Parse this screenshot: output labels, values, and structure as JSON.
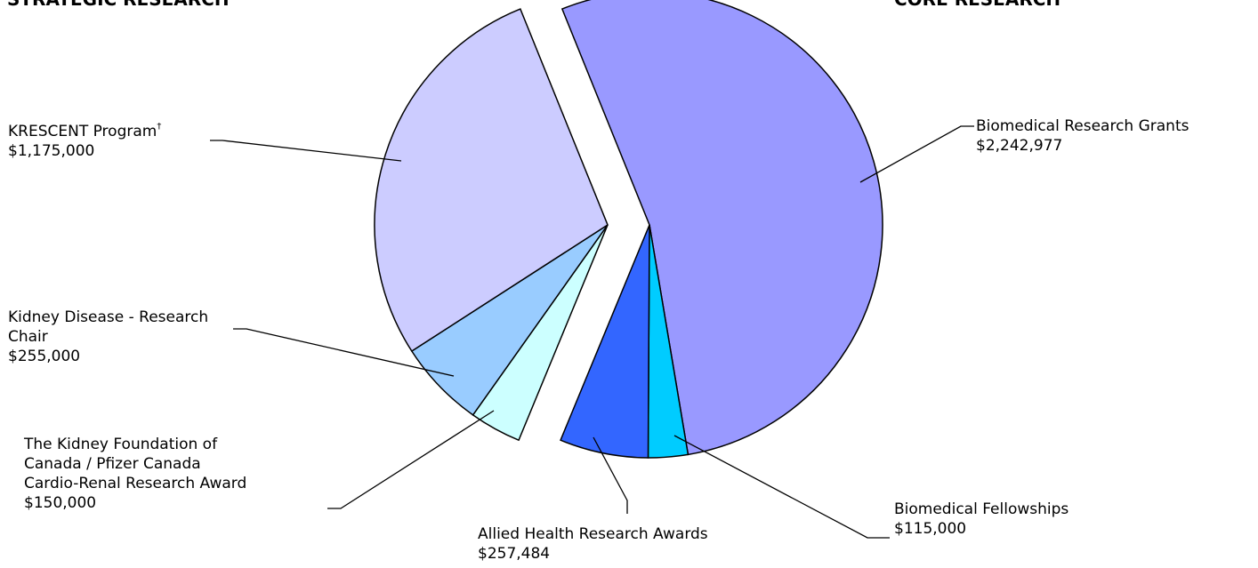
{
  "chart_data": {
    "type": "pie",
    "groups": [
      {
        "name": "STRATEGIC RESEARCH"
      },
      {
        "name": "CORE RESEARCH"
      }
    ],
    "slices": [
      {
        "group": "CORE RESEARCH",
        "label_lines": [
          "Biomedical Research Grants"
        ],
        "value_text": "$2,242,977",
        "value": 2242977,
        "color": "#9999FF"
      },
      {
        "group": "CORE RESEARCH",
        "label_lines": [
          "Biomedical Fellowships"
        ],
        "value_text": "$115,000",
        "value": 115000,
        "color": "#00CCFF"
      },
      {
        "group": "CORE RESEARCH",
        "label_lines": [
          "Allied Health Research Awards"
        ],
        "value_text": "$257,484",
        "value": 257484,
        "color": "#3366FF"
      },
      {
        "group": "STRATEGIC RESEARCH",
        "label_lines": [
          "The Kidney Foundation of",
          "Canada / Pfizer Canada",
          "Cardio-Renal Research Award"
        ],
        "value_text": "$150,000",
        "value": 150000,
        "color": "#CCFFFF"
      },
      {
        "group": "STRATEGIC RESEARCH",
        "label_lines": [
          "Kidney Disease - Research",
          "Chair"
        ],
        "value_text": "$255,000",
        "value": 255000,
        "color": "#99CCFF"
      },
      {
        "group": "STRATEGIC RESEARCH",
        "label_lines": [
          "KRESCENT Program"
        ],
        "label_superscript": "†",
        "value_text": "$1,175,000",
        "value": 1175000,
        "color": "#CCCCFF"
      }
    ]
  }
}
